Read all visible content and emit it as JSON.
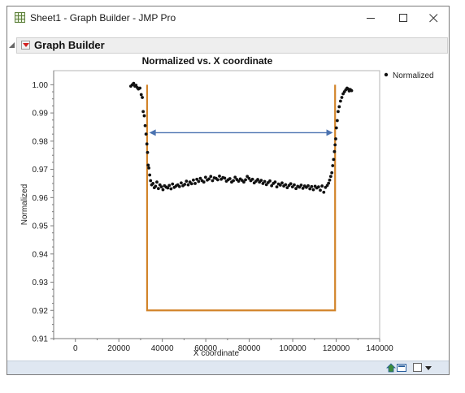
{
  "window": {
    "title": "Sheet1 - Graph Builder - JMP Pro"
  },
  "outline": {
    "title": "Graph Builder"
  },
  "colors": {
    "axis": "#7a7a7a",
    "points": "#111111",
    "bracket": "#d2842a",
    "arrow": "#4a72b0",
    "statusbar": "#dfe7f1"
  },
  "chart_data": {
    "type": "scatter",
    "title": "Normalized vs. X coordinate",
    "xlabel": "X coordinate",
    "ylabel": "Normalized",
    "xlim": [
      -10000,
      140000
    ],
    "ylim": [
      0.91,
      1.005
    ],
    "x_ticks": [
      0,
      20000,
      40000,
      60000,
      80000,
      100000,
      120000,
      140000
    ],
    "y_ticks": [
      0.91,
      0.92,
      0.93,
      0.94,
      0.95,
      0.96,
      0.97,
      0.98,
      0.99,
      1.0
    ],
    "x_tick_labels": [
      "0",
      "20000",
      "40000",
      "60000",
      "80000",
      "100000",
      "120000",
      "140000"
    ],
    "y_tick_labels": [
      "0.91",
      "0.92",
      "0.93",
      "0.94",
      "0.95",
      "0.96",
      "0.97",
      "0.98",
      "0.99",
      "1.00"
    ],
    "legend": {
      "position": "right",
      "entries": [
        "Normalized"
      ]
    },
    "grid": false,
    "series": [
      {
        "name": "Normalized",
        "points": [
          [
            25500,
            0.9995
          ],
          [
            26200,
            1.0
          ],
          [
            26800,
            1.0005
          ],
          [
            27400,
            0.9995
          ],
          [
            27900,
            0.9998
          ],
          [
            28500,
            0.999
          ],
          [
            29000,
            0.9985
          ],
          [
            29700,
            0.9988
          ],
          [
            30300,
            0.9965
          ],
          [
            30800,
            0.9955
          ],
          [
            31200,
            0.9905
          ],
          [
            31700,
            0.989
          ],
          [
            32100,
            0.9855
          ],
          [
            32500,
            0.9825
          ],
          [
            32900,
            0.979
          ],
          [
            33200,
            0.976
          ],
          [
            33500,
            0.9715
          ],
          [
            33800,
            0.9705
          ],
          [
            34200,
            0.968
          ],
          [
            34600,
            0.966
          ],
          [
            35100,
            0.9645
          ],
          [
            35700,
            0.965
          ],
          [
            36300,
            0.9635
          ],
          [
            36900,
            0.964
          ],
          [
            37500,
            0.9655
          ],
          [
            38200,
            0.9632
          ],
          [
            38900,
            0.9645
          ],
          [
            39600,
            0.9638
          ],
          [
            40300,
            0.9628
          ],
          [
            41000,
            0.9642
          ],
          [
            41800,
            0.9637
          ],
          [
            42500,
            0.9634
          ],
          [
            43200,
            0.9643
          ],
          [
            44000,
            0.9631
          ],
          [
            44700,
            0.9648
          ],
          [
            45500,
            0.9636
          ],
          [
            46300,
            0.9641
          ],
          [
            47100,
            0.9645
          ],
          [
            47900,
            0.9639
          ],
          [
            48700,
            0.9652
          ],
          [
            49500,
            0.9642
          ],
          [
            50300,
            0.9647
          ],
          [
            51100,
            0.9658
          ],
          [
            51900,
            0.9645
          ],
          [
            52700,
            0.9655
          ],
          [
            53500,
            0.9649
          ],
          [
            54300,
            0.9662
          ],
          [
            55100,
            0.965
          ],
          [
            55900,
            0.9665
          ],
          [
            56700,
            0.9657
          ],
          [
            57500,
            0.9668
          ],
          [
            58300,
            0.966
          ],
          [
            59100,
            0.9655
          ],
          [
            59900,
            0.9672
          ],
          [
            60700,
            0.9662
          ],
          [
            61500,
            0.9666
          ],
          [
            62300,
            0.9675
          ],
          [
            63100,
            0.966
          ],
          [
            63900,
            0.967
          ],
          [
            64700,
            0.9668
          ],
          [
            65500,
            0.9663
          ],
          [
            66300,
            0.9676
          ],
          [
            67100,
            0.9665
          ],
          [
            67900,
            0.9671
          ],
          [
            68700,
            0.9669
          ],
          [
            69500,
            0.9658
          ],
          [
            70300,
            0.9663
          ],
          [
            71100,
            0.9667
          ],
          [
            71900,
            0.9655
          ],
          [
            72700,
            0.966
          ],
          [
            73500,
            0.9672
          ],
          [
            74300,
            0.9664
          ],
          [
            75100,
            0.9658
          ],
          [
            75900,
            0.9666
          ],
          [
            76700,
            0.9661
          ],
          [
            77500,
            0.9655
          ],
          [
            78300,
            0.9663
          ],
          [
            79100,
            0.9675
          ],
          [
            79900,
            0.9668
          ],
          [
            80700,
            0.966
          ],
          [
            81500,
            0.9665
          ],
          [
            82300,
            0.9652
          ],
          [
            83100,
            0.9658
          ],
          [
            83900,
            0.9664
          ],
          [
            84700,
            0.9655
          ],
          [
            85500,
            0.9661
          ],
          [
            86300,
            0.965
          ],
          [
            87100,
            0.9657
          ],
          [
            87900,
            0.9646
          ],
          [
            88700,
            0.9653
          ],
          [
            89500,
            0.9659
          ],
          [
            90300,
            0.9642
          ],
          [
            91100,
            0.965
          ],
          [
            91900,
            0.9655
          ],
          [
            92700,
            0.9638
          ],
          [
            93500,
            0.9648
          ],
          [
            94300,
            0.9644
          ],
          [
            95100,
            0.9652
          ],
          [
            95900,
            0.9641
          ],
          [
            96700,
            0.9646
          ],
          [
            97500,
            0.9635
          ],
          [
            98300,
            0.9643
          ],
          [
            99100,
            0.9649
          ],
          [
            99900,
            0.9638
          ],
          [
            100700,
            0.9645
          ],
          [
            101500,
            0.9632
          ],
          [
            102300,
            0.964
          ],
          [
            103100,
            0.9637
          ],
          [
            103900,
            0.9644
          ],
          [
            104700,
            0.9633
          ],
          [
            105500,
            0.9641
          ],
          [
            106300,
            0.9636
          ],
          [
            107100,
            0.9642
          ],
          [
            107900,
            0.9631
          ],
          [
            108700,
            0.9639
          ],
          [
            109500,
            0.9628
          ],
          [
            110300,
            0.964
          ],
          [
            111100,
            0.9634
          ],
          [
            111900,
            0.9638
          ],
          [
            112700,
            0.9626
          ],
          [
            113500,
            0.9641
          ],
          [
            114300,
            0.9619
          ],
          [
            115100,
            0.9636
          ],
          [
            115900,
            0.9643
          ],
          [
            116500,
            0.9651
          ],
          [
            117000,
            0.9662
          ],
          [
            117500,
            0.9675
          ],
          [
            118000,
            0.9688
          ],
          [
            118400,
            0.9713
          ],
          [
            118800,
            0.9735
          ],
          [
            119200,
            0.9763
          ],
          [
            119500,
            0.9787
          ],
          [
            119800,
            0.9808
          ],
          [
            120100,
            0.9847
          ],
          [
            120500,
            0.9873
          ],
          [
            120900,
            0.9905
          ],
          [
            121400,
            0.9922
          ],
          [
            122000,
            0.9942
          ],
          [
            122600,
            0.9955
          ],
          [
            123200,
            0.9968
          ],
          [
            123800,
            0.9975
          ],
          [
            124400,
            0.9982
          ],
          [
            125000,
            0.9988
          ],
          [
            125500,
            0.9985
          ],
          [
            126000,
            0.9978
          ],
          [
            126500,
            0.9983
          ],
          [
            127100,
            0.9979
          ]
        ]
      }
    ],
    "annotations": [
      {
        "type": "bracket",
        "x_start": 33000,
        "x_end": 119500,
        "y_top": 1.0,
        "y_bottom": 0.92
      },
      {
        "type": "double-arrow",
        "x_start": 34000,
        "x_end": 118500,
        "y": 0.983
      }
    ]
  }
}
